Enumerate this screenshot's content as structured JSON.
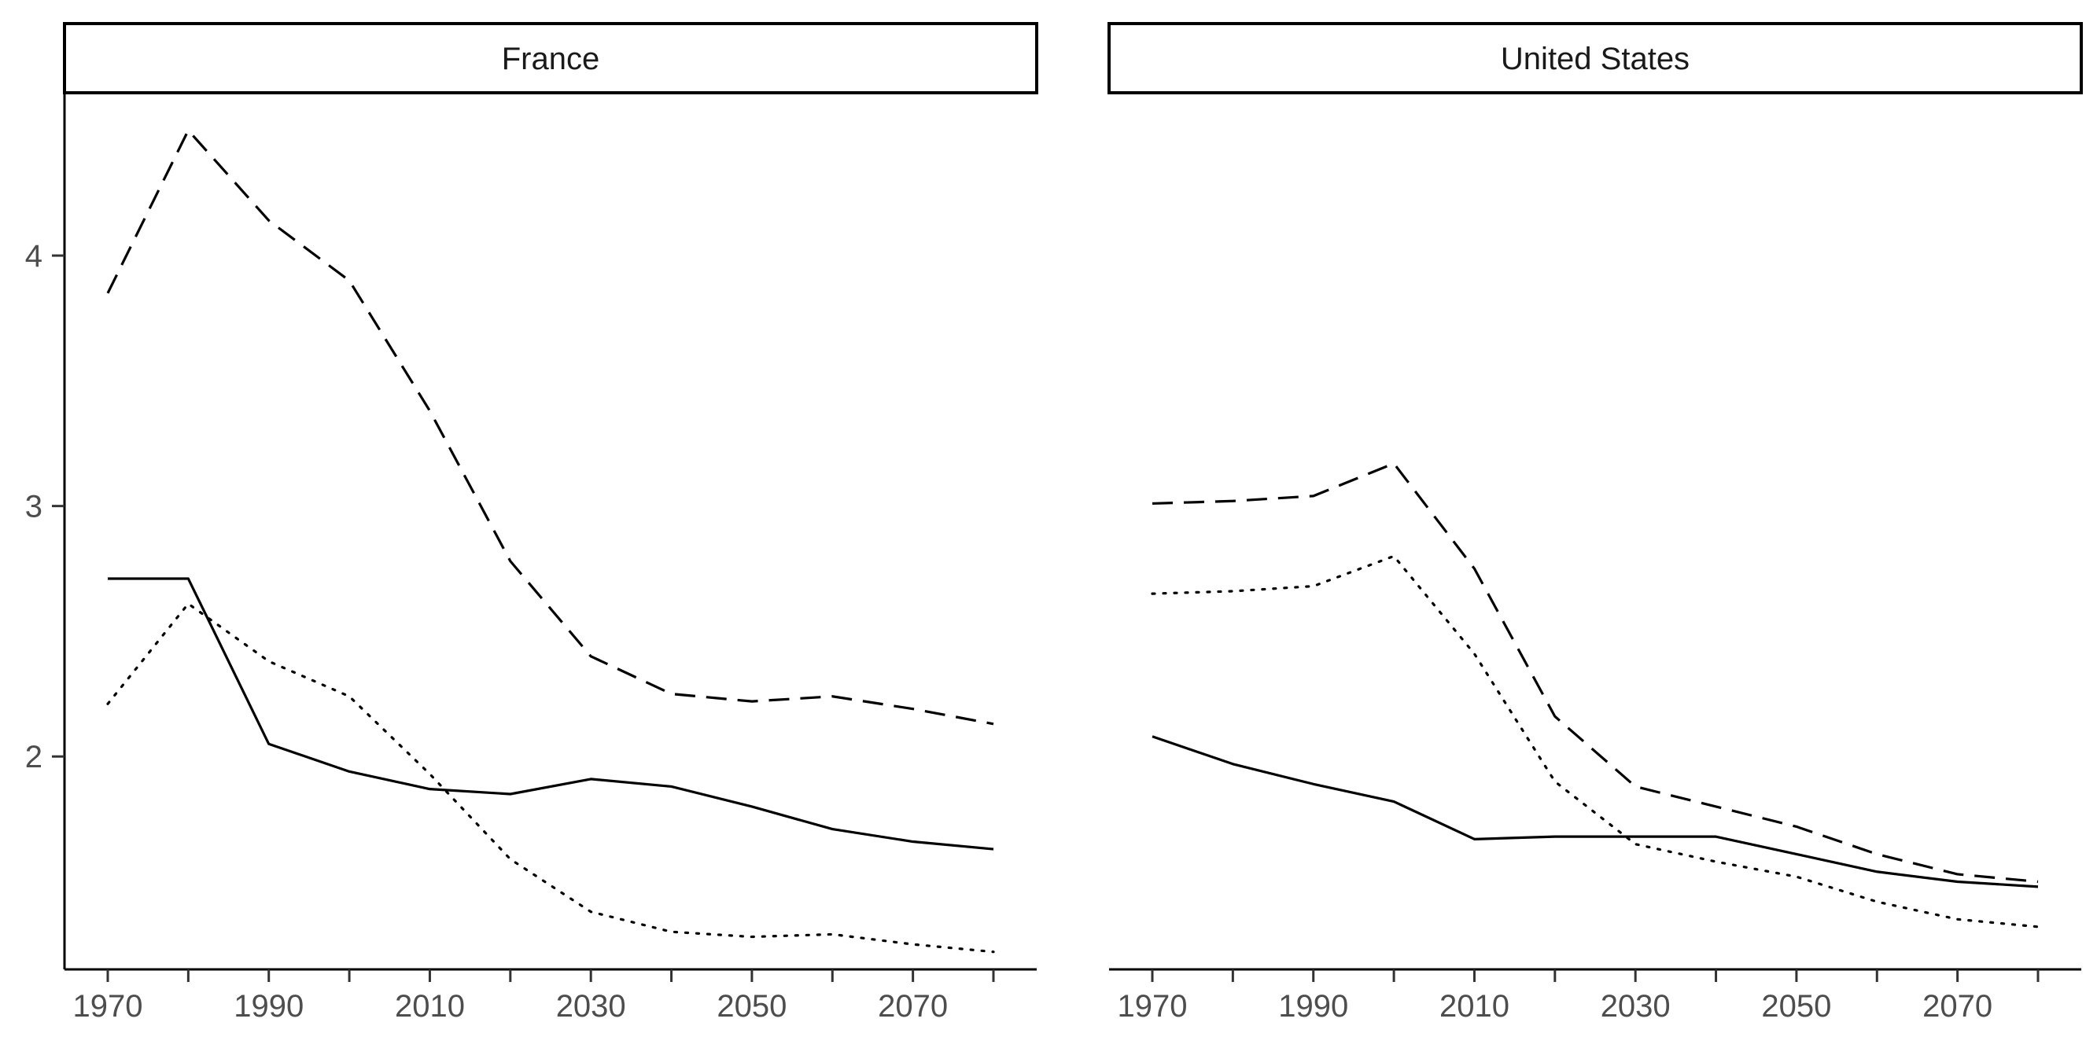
{
  "chart_data": {
    "type": "line",
    "facets": [
      {
        "title": "France",
        "x": [
          1970,
          1980,
          1990,
          2000,
          2010,
          2020,
          2030,
          2040,
          2050,
          2060,
          2070,
          2080
        ],
        "series": [
          {
            "linestyle": "solid",
            "values": [
              2.71,
              2.71,
              2.05,
              1.94,
              1.87,
              1.85,
              1.91,
              1.88,
              1.8,
              1.71,
              1.66,
              1.63
            ]
          },
          {
            "linestyle": "dashed",
            "values": [
              3.85,
              4.5,
              4.14,
              3.9,
              3.38,
              2.78,
              2.4,
              2.25,
              2.22,
              2.24,
              2.19,
              2.13
            ]
          },
          {
            "linestyle": "dotted",
            "values": [
              2.21,
              2.61,
              2.38,
              2.24,
              1.93,
              1.59,
              1.38,
              1.3,
              1.28,
              1.29,
              1.25,
              1.22
            ]
          }
        ]
      },
      {
        "title": "United States",
        "x": [
          1970,
          1980,
          1990,
          2000,
          2010,
          2020,
          2030,
          2040,
          2050,
          2060,
          2070,
          2080
        ],
        "series": [
          {
            "linestyle": "solid",
            "values": [
              2.08,
              1.97,
              1.89,
              1.82,
              1.67,
              1.68,
              1.68,
              1.68,
              1.61,
              1.54,
              1.5,
              1.48
            ]
          },
          {
            "linestyle": "dashed",
            "values": [
              3.01,
              3.02,
              3.04,
              3.17,
              2.75,
              2.16,
              1.88,
              1.8,
              1.72,
              1.61,
              1.53,
              1.5
            ]
          },
          {
            "linestyle": "dotted",
            "values": [
              2.65,
              2.66,
              2.68,
              2.8,
              2.41,
              1.9,
              1.65,
              1.58,
              1.52,
              1.42,
              1.35,
              1.32
            ]
          }
        ]
      }
    ],
    "xticks": [
      1970,
      1990,
      2010,
      2030,
      2050,
      2070
    ],
    "yticks": [
      2,
      3,
      4
    ],
    "xlim": [
      1970,
      2080
    ],
    "ylim": [
      1.15,
      4.65
    ],
    "xlabel": "",
    "ylabel": "",
    "grid": false,
    "legend": "none",
    "colors": {
      "line": "#000000",
      "tick_label": "#4d4d4d",
      "strip_fill": "#ffffff"
    }
  }
}
